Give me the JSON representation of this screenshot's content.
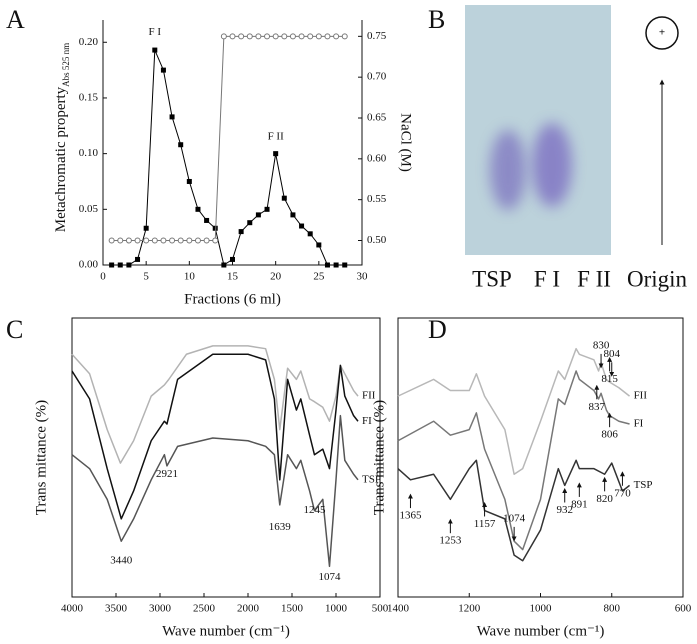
{
  "chart_data": [
    {
      "type": "line",
      "panel": "A",
      "x": [
        1,
        2,
        3,
        4,
        5,
        6,
        7,
        8,
        9,
        10,
        11,
        12,
        13,
        14,
        15,
        16,
        17,
        18,
        19,
        20,
        21,
        22,
        23,
        24,
        25,
        26,
        27,
        28
      ],
      "series": [
        {
          "color": "#000000",
          "marker": "square",
          "values": [
            0,
            0,
            0,
            0.005,
            0.033,
            0.193,
            0.175,
            0.133,
            0.108,
            0.075,
            0.05,
            0.04,
            0.033,
            0,
            0.005,
            0.03,
            0.038,
            0.045,
            0.05,
            0.1,
            0.06,
            0.045,
            0.035,
            0.028,
            0.018,
            0,
            0,
            0
          ]
        },
        {
          "color": "#777777",
          "marker": "circle",
          "axis": "y2",
          "values": [
            0.5,
            0.5,
            0.5,
            0.5,
            0.5,
            0.5,
            0.5,
            0.5,
            0.5,
            0.5,
            0.5,
            0.5,
            0.5,
            0.75,
            0.75,
            0.75,
            0.75,
            0.75,
            0.75,
            0.75,
            0.75,
            0.75,
            0.75,
            0.75,
            0.75,
            0.75,
            0.75,
            0.75
          ]
        }
      ],
      "xlim": [
        0,
        30
      ],
      "xticks": [
        0,
        5,
        10,
        15,
        20,
        25,
        30
      ],
      "ylim": [
        0,
        0.22
      ],
      "yticks": [
        {
          "value": 0,
          "label": "0.00"
        },
        {
          "value": 0.05,
          "label": "0.05"
        },
        {
          "value": 0.1,
          "label": "0.10"
        },
        {
          "value": 0.15,
          "label": "0.15"
        },
        {
          "value": 0.2,
          "label": "0.20"
        }
      ],
      "y2lim": [
        0.47,
        0.77
      ],
      "y2ticks": [
        {
          "value": 0.5,
          "label": "0.50"
        },
        {
          "value": 0.55,
          "label": "0.55"
        },
        {
          "value": 0.6,
          "label": "0.60"
        },
        {
          "value": 0.65,
          "label": "0.65"
        },
        {
          "value": 0.7,
          "label": "0.70"
        },
        {
          "value": 0.75,
          "label": "0.75"
        }
      ],
      "xlabel": "Fractions (6 ml)",
      "ylabel": "Metachromatic property",
      "ylabel_sub": "Abs 525 nm",
      "y2label": "NaCl (M)",
      "annotations": [
        {
          "text": "F I",
          "x": 6,
          "y": 0.2
        },
        {
          "text": "F II",
          "x": 20,
          "y": 0.106
        }
      ]
    },
    {
      "type": "gel",
      "panel": "B",
      "lanes": [
        "TSP",
        "F I",
        "F II"
      ],
      "origin_label": "Origin",
      "pole_label": "+"
    },
    {
      "type": "spectrum",
      "panel": "C",
      "xlim": [
        4000,
        500
      ],
      "xticks": [
        4000,
        3500,
        3000,
        2500,
        2000,
        1500,
        1000,
        500
      ],
      "ylim": [
        0,
        100
      ],
      "xlabel": "Wave number (cm⁻¹)",
      "ylabel": "Trans mittance (%)",
      "series": [
        {
          "name": "FII",
          "color": "#b3b3b3",
          "x": [
            4000,
            3800,
            3600,
            3450,
            3300,
            3100,
            2950,
            2900,
            2700,
            2400,
            2000,
            1800,
            1700,
            1639,
            1550,
            1450,
            1400,
            1300,
            1245,
            1150,
            1074,
            1000,
            950,
            900,
            800,
            750
          ],
          "values": [
            87,
            80,
            60,
            48,
            56,
            72,
            76,
            78,
            87,
            90,
            90,
            89,
            78,
            60,
            82,
            78,
            81,
            71,
            70,
            68,
            63,
            72,
            83,
            80,
            74,
            72
          ]
        },
        {
          "name": "FI",
          "color": "#111111",
          "x": [
            4000,
            3800,
            3600,
            3440,
            3300,
            3100,
            2950,
            2921,
            2800,
            2400,
            2000,
            1800,
            1700,
            1639,
            1550,
            1450,
            1400,
            1300,
            1245,
            1150,
            1074,
            1000,
            950,
            900,
            800,
            750
          ],
          "values": [
            81,
            71,
            46,
            28,
            38,
            56,
            63,
            62,
            78,
            87,
            87,
            85,
            71,
            42,
            78,
            67,
            71,
            58,
            51,
            53,
            46,
            67,
            83,
            72,
            65,
            63
          ]
        },
        {
          "name": "TSP",
          "color": "#555555",
          "x": [
            4000,
            3800,
            3600,
            3440,
            3300,
            3100,
            2950,
            2921,
            2800,
            2400,
            2000,
            1800,
            1700,
            1639,
            1550,
            1450,
            1400,
            1300,
            1245,
            1150,
            1074,
            1000,
            950,
            900,
            800,
            750
          ],
          "values": [
            51,
            46,
            35,
            20,
            28,
            42,
            51,
            47,
            54,
            57,
            56,
            54,
            51,
            33,
            51,
            46,
            49,
            38,
            31,
            35,
            11,
            42,
            65,
            49,
            44,
            42
          ]
        }
      ],
      "annotations": [
        {
          "text": "3440",
          "x": 3440,
          "y": 13
        },
        {
          "text": "2921",
          "x": 2921,
          "y": 44
        },
        {
          "text": "1639",
          "x": 1639,
          "y": 25
        },
        {
          "text": "1245",
          "x": 1245,
          "y": 31
        },
        {
          "text": "1074",
          "x": 1074,
          "y": 7
        }
      ]
    },
    {
      "type": "spectrum",
      "panel": "D",
      "xlim": [
        1400,
        600
      ],
      "xticks": [
        1400,
        1200,
        1000,
        800,
        600
      ],
      "ylim": [
        0,
        100
      ],
      "xlabel": "Wave number (cm⁻¹)",
      "ylabel": "Trans mittance (%)",
      "series": [
        {
          "name": "FII",
          "color": "#b8b8b8",
          "x": [
            1400,
            1300,
            1253,
            1200,
            1180,
            1157,
            1100,
            1074,
            1050,
            1000,
            950,
            932,
            900,
            891,
            850,
            837,
            830,
            815,
            806,
            780,
            750
          ],
          "values": [
            72,
            78,
            74,
            74,
            80,
            72,
            60,
            44,
            46,
            63,
            81,
            78,
            89,
            87,
            85,
            81,
            84,
            78,
            77,
            75,
            72
          ]
        },
        {
          "name": "FI",
          "color": "#777777",
          "x": [
            1400,
            1300,
            1253,
            1200,
            1180,
            1157,
            1100,
            1074,
            1050,
            1000,
            950,
            932,
            900,
            891,
            850,
            837,
            830,
            815,
            806,
            780,
            750
          ],
          "values": [
            56,
            63,
            58,
            60,
            66,
            53,
            35,
            20,
            17,
            35,
            71,
            69,
            81,
            78,
            74,
            71,
            73,
            67,
            65,
            63,
            62
          ]
        },
        {
          "name": "TSP",
          "color": "#333333",
          "x": [
            1400,
            1365,
            1300,
            1253,
            1200,
            1180,
            1157,
            1100,
            1074,
            1050,
            1000,
            950,
            932,
            900,
            891,
            850,
            820,
            800,
            770,
            750
          ],
          "values": [
            46,
            42,
            44,
            35,
            46,
            49,
            31,
            28,
            15,
            13,
            24,
            46,
            40,
            49,
            46,
            46,
            44,
            48,
            38,
            40
          ]
        }
      ],
      "annotations": [
        {
          "text": "1365",
          "x": 1365,
          "y": 29,
          "arrow": "up"
        },
        {
          "text": "1253",
          "x": 1253,
          "y": 20,
          "arrow": "up"
        },
        {
          "text": "1157",
          "x": 1157,
          "y": 26,
          "arrow": "up"
        },
        {
          "text": "1074",
          "x": 1074,
          "y": 28,
          "arrow": "down"
        },
        {
          "text": "932",
          "x": 932,
          "y": 31,
          "arrow": "up"
        },
        {
          "text": "891",
          "x": 891,
          "y": 33,
          "arrow": "up"
        },
        {
          "text": "820",
          "x": 820,
          "y": 35,
          "arrow": "up"
        },
        {
          "text": "770",
          "x": 770,
          "y": 37,
          "arrow": "up"
        },
        {
          "text": "830",
          "x": 830,
          "y": 90,
          "arrow": "down"
        },
        {
          "text": "804",
          "x": 800,
          "y": 87,
          "arrow": "down"
        },
        {
          "text": "815",
          "x": 806,
          "y": 78,
          "arrow": "up"
        },
        {
          "text": "837",
          "x": 842,
          "y": 68,
          "arrow": "up"
        },
        {
          "text": "806",
          "x": 806,
          "y": 58,
          "arrow": "up"
        }
      ]
    }
  ]
}
